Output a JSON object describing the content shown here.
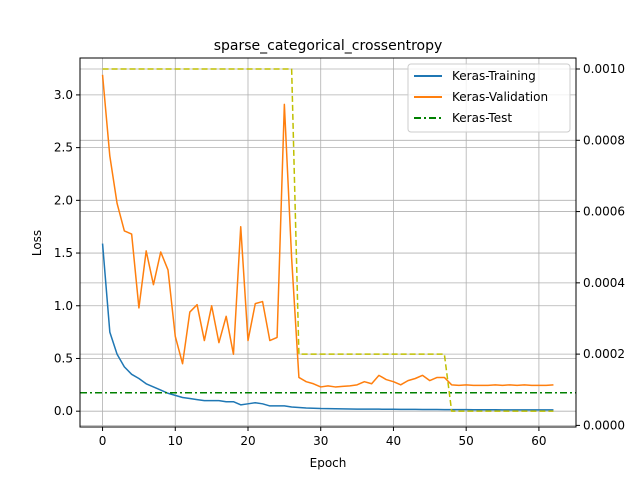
{
  "chart_data": {
    "type": "line",
    "title": "sparse_categorical_crossentropy",
    "xlabel": "Epoch",
    "ylabel": "Loss",
    "xlim": [
      -3.1,
      65.1
    ],
    "ylim": [
      -0.15,
      3.35
    ],
    "y2lim": [
      -4.5e-06,
      0.0010309
    ],
    "x_ticks": [
      0,
      10,
      20,
      30,
      40,
      50,
      60
    ],
    "y_ticks": [
      0.0,
      0.5,
      1.0,
      1.5,
      2.0,
      2.5,
      3.0
    ],
    "y_tick_labels": [
      "0.0",
      "0.5",
      "1.0",
      "1.5",
      "2.0",
      "2.5",
      "3.0"
    ],
    "y2_ticks": [
      0.0,
      0.0002,
      0.0004,
      0.0006,
      0.0008,
      0.001
    ],
    "y2_tick_labels": [
      "0.0000",
      "0.0002",
      "0.0004",
      "0.0006",
      "0.0008",
      "0.0010"
    ],
    "grid": true,
    "legend_position": "top-right",
    "series": [
      {
        "name": "Keras-Training",
        "color": "#1f77b4",
        "axis": "left",
        "style": "solid",
        "y": [
          1.59,
          0.75,
          0.54,
          0.42,
          0.35,
          0.31,
          0.26,
          0.23,
          0.2,
          0.17,
          0.15,
          0.13,
          0.12,
          0.11,
          0.1,
          0.1,
          0.1,
          0.09,
          0.09,
          0.06,
          0.07,
          0.08,
          0.07,
          0.05,
          0.05,
          0.05,
          0.04,
          0.035,
          0.03,
          0.028,
          0.025,
          0.024,
          0.023,
          0.022,
          0.021,
          0.02,
          0.02,
          0.019,
          0.019,
          0.018,
          0.018,
          0.017,
          0.017,
          0.017,
          0.016,
          0.016,
          0.016,
          0.015,
          0.015,
          0.015,
          0.015,
          0.014,
          0.014,
          0.014,
          0.014,
          0.013,
          0.013,
          0.013,
          0.013,
          0.013,
          0.012,
          0.012,
          0.012
        ]
      },
      {
        "name": "Keras-Validation",
        "color": "#ff7f0e",
        "axis": "left",
        "style": "solid",
        "y": [
          3.19,
          2.42,
          1.97,
          1.71,
          1.68,
          0.98,
          1.52,
          1.2,
          1.51,
          1.34,
          0.71,
          0.45,
          0.94,
          1.01,
          0.67,
          1.0,
          0.65,
          0.9,
          0.54,
          1.75,
          0.67,
          1.02,
          1.04,
          0.67,
          0.7,
          2.91,
          1.45,
          0.32,
          0.28,
          0.26,
          0.23,
          0.24,
          0.23,
          0.235,
          0.24,
          0.25,
          0.28,
          0.26,
          0.34,
          0.3,
          0.28,
          0.25,
          0.29,
          0.31,
          0.34,
          0.29,
          0.32,
          0.32,
          0.25,
          0.245,
          0.25,
          0.245,
          0.245,
          0.245,
          0.25,
          0.245,
          0.25,
          0.245,
          0.25,
          0.245,
          0.245,
          0.245,
          0.25
        ]
      },
      {
        "name": "Keras-Test",
        "color": "#008000",
        "axis": "left",
        "style": "dashdot",
        "constant": 0.175
      },
      {
        "name": "",
        "color": "#bfbf00",
        "axis": "right",
        "style": "dashed",
        "steps": [
          [
            0,
            0.001
          ],
          [
            26,
            0.001
          ],
          [
            27,
            0.0002
          ],
          [
            47,
            0.0002
          ],
          [
            48,
            4e-05
          ],
          [
            62,
            4e-05
          ]
        ]
      }
    ]
  }
}
